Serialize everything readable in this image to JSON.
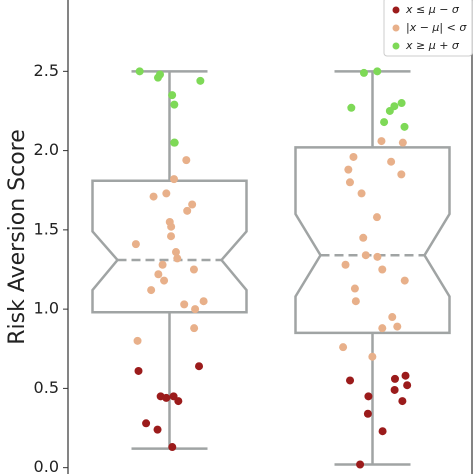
{
  "chart_data": {
    "type": "box",
    "ylabel": "Risk Aversion Score",
    "ylim": [
      -0.04,
      2.95
    ],
    "yticks": [
      {
        "value": 0,
        "label": "0.0"
      },
      0.5,
      {
        "value": 1,
        "label": "1.0"
      },
      1.5,
      {
        "value": 2,
        "label": "2.0"
      },
      2.5
    ],
    "box_color": "#a0a4a4",
    "legend": "upper right",
    "boxes": [
      {
        "whislo": 0.12,
        "q1": 0.98,
        "notch_lo": 1.12,
        "med": 1.31,
        "notch_hi": 1.49,
        "q3": 1.81,
        "whishi": 2.5
      },
      {
        "whislo": 0.02,
        "q1": 0.85,
        "notch_lo": 1.08,
        "med": 1.34,
        "notch_hi": 1.6,
        "q3": 2.02,
        "whishi": 2.5
      }
    ],
    "series": [
      {
        "name": "x ≤ μ − σ",
        "color": "#9b1b1b",
        "box": [
          0,
          0,
          0,
          0,
          0,
          0,
          0,
          0,
          0,
          1,
          1,
          1,
          1,
          1,
          1,
          1,
          1,
          1,
          1
        ],
        "values": [
          0.64,
          0.61,
          0.45,
          0.45,
          0.44,
          0.42,
          0.28,
          0.24,
          0.13,
          0.58,
          0.56,
          0.55,
          0.52,
          0.49,
          0.45,
          0.42,
          0.34,
          0.23,
          0.02
        ]
      },
      {
        "name": "|x − μ| < σ",
        "color": "#e8b08a",
        "box": [
          0,
          0,
          0,
          0,
          0,
          0,
          0,
          0,
          0,
          0,
          0,
          0,
          0,
          0,
          0,
          0,
          0,
          0,
          0,
          0,
          0,
          0,
          1,
          1,
          1,
          1,
          1,
          1,
          1,
          1,
          1,
          1,
          1,
          1,
          1,
          1,
          1,
          1,
          1,
          1,
          1,
          1,
          1,
          1
        ],
        "values": [
          1.94,
          1.82,
          1.73,
          1.71,
          1.66,
          1.62,
          1.55,
          1.52,
          1.46,
          1.41,
          1.36,
          1.32,
          1.28,
          1.25,
          1.22,
          1.18,
          1.12,
          1.05,
          1.03,
          1.0,
          0.88,
          0.8,
          2.06,
          2.05,
          1.96,
          1.93,
          1.88,
          1.85,
          1.8,
          1.73,
          1.58,
          1.45,
          1.34,
          1.33,
          1.28,
          1.25,
          1.18,
          1.13,
          1.05,
          0.95,
          0.89,
          0.88,
          0.76,
          0.7
        ]
      },
      {
        "name": "x ≥ μ + σ",
        "color": "#7ed957",
        "box": [
          0,
          0,
          0,
          0,
          0,
          0,
          0,
          0,
          1,
          1,
          1,
          1,
          1,
          1,
          1,
          1
        ],
        "values": [
          2.5,
          2.48,
          2.46,
          2.44,
          2.35,
          2.29,
          2.05,
          2.05,
          2.5,
          2.49,
          2.3,
          2.28,
          2.27,
          2.25,
          2.18,
          2.15
        ]
      }
    ]
  }
}
